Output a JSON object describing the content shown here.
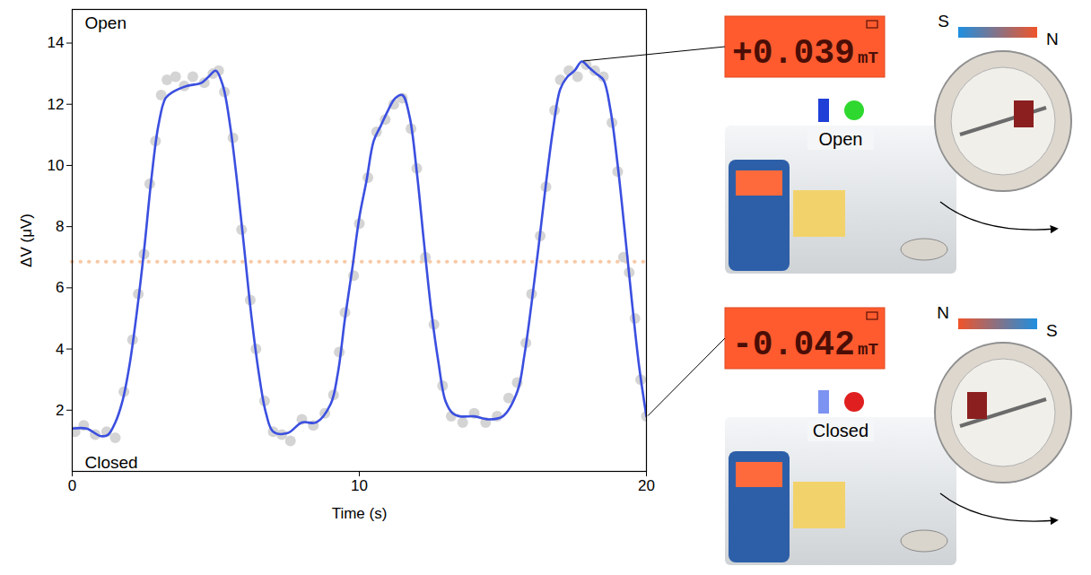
{
  "chart_data": {
    "type": "line",
    "xlabel": "Time (s)",
    "ylabel": "ΔV (μV)",
    "xlim": [
      0,
      20
    ],
    "xticks": [
      0,
      10,
      20
    ],
    "ylim": [
      0,
      15.1
    ],
    "yticks": [
      2,
      4,
      6,
      8,
      10,
      12,
      14
    ],
    "series": [
      {
        "type": "scatter",
        "marker": "circle",
        "color": "#d4d4d4",
        "x": [
          0.1,
          0.4,
          0.8,
          1.2,
          1.5,
          1.8,
          2.1,
          2.3,
          2.5,
          2.7,
          2.9,
          3.1,
          3.3,
          3.6,
          3.9,
          4.2,
          4.6,
          4.9,
          5.1,
          5.3,
          5.6,
          5.9,
          6.2,
          6.4,
          6.7,
          7.0,
          7.3,
          7.6,
          8.0,
          8.4,
          8.8,
          9.1,
          9.3,
          9.5,
          9.8,
          10.0,
          10.3,
          10.6,
          10.9,
          11.2,
          11.5,
          11.8,
          12.0,
          12.3,
          12.6,
          12.9,
          13.2,
          13.6,
          14.0,
          14.4,
          14.8,
          15.2,
          15.5,
          15.8,
          16.0,
          16.3,
          16.5,
          16.8,
          17.0,
          17.3,
          17.6,
          17.9,
          18.2,
          18.5,
          18.8,
          19.0,
          19.2,
          19.4,
          19.6,
          19.8,
          20.0
        ],
        "values": [
          1.3,
          1.5,
          1.2,
          1.3,
          1.1,
          2.6,
          4.3,
          5.8,
          7.1,
          9.4,
          10.8,
          12.3,
          12.8,
          12.9,
          12.6,
          12.9,
          12.7,
          13.0,
          13.1,
          12.4,
          10.9,
          7.9,
          5.6,
          4.0,
          2.3,
          1.3,
          1.2,
          1.0,
          1.7,
          1.5,
          1.9,
          2.5,
          3.9,
          5.2,
          6.4,
          8.1,
          9.6,
          11.1,
          11.5,
          12.0,
          12.2,
          11.2,
          9.9,
          7.0,
          4.8,
          2.8,
          1.8,
          1.6,
          1.9,
          1.6,
          1.8,
          2.4,
          2.9,
          4.2,
          5.8,
          7.7,
          9.3,
          11.8,
          12.8,
          13.1,
          12.9,
          13.3,
          13.1,
          12.9,
          11.4,
          9.8,
          7.0,
          6.5,
          5.0,
          3.0,
          1.8
        ]
      },
      {
        "type": "line",
        "line_style": "solid",
        "color": "#3b4fe0",
        "x": [
          0,
          0.5,
          1.0,
          1.25,
          1.5,
          1.75,
          2.0,
          2.25,
          2.5,
          2.75,
          3.0,
          3.25,
          3.5,
          4.0,
          4.5,
          4.75,
          5.0,
          5.25,
          5.5,
          5.75,
          6.0,
          6.25,
          6.5,
          6.75,
          7.0,
          7.5,
          8.0,
          8.5,
          9.0,
          9.25,
          9.5,
          9.75,
          10.0,
          10.25,
          10.5,
          10.75,
          11.0,
          11.25,
          11.5,
          11.75,
          12.0,
          12.25,
          12.5,
          12.75,
          13.0,
          13.25,
          13.5,
          14.0,
          14.5,
          15.0,
          15.5,
          15.75,
          16.0,
          16.25,
          16.5,
          16.75,
          17.0,
          17.25,
          17.5,
          17.75,
          18.0,
          18.25,
          18.5,
          18.75,
          19.0,
          19.25,
          19.5,
          19.75,
          20.0
        ],
        "values": [
          1.4,
          1.4,
          1.15,
          1.2,
          1.6,
          2.3,
          3.5,
          5.2,
          7.2,
          9.5,
          11.3,
          12.2,
          12.4,
          12.6,
          12.7,
          12.9,
          13.1,
          12.6,
          11.3,
          9.4,
          7.2,
          5.0,
          3.2,
          1.9,
          1.3,
          1.25,
          1.6,
          1.6,
          2.2,
          3.2,
          5.0,
          6.6,
          8.3,
          9.5,
          10.8,
          11.3,
          11.8,
          12.2,
          12.3,
          11.6,
          9.8,
          7.5,
          5.3,
          3.6,
          2.3,
          1.9,
          1.8,
          1.8,
          1.7,
          1.8,
          2.6,
          3.8,
          5.5,
          7.4,
          9.4,
          11.2,
          12.5,
          12.9,
          13.1,
          13.4,
          13.2,
          13.0,
          12.8,
          11.8,
          10.0,
          7.8,
          5.5,
          3.4,
          1.8
        ]
      }
    ],
    "reference_line": {
      "y": 6.85,
      "color": "#f8c9a6",
      "line_style": "dotted"
    },
    "annotations": [
      {
        "text": "Open",
        "position": "top-left"
      },
      {
        "text": "Closed",
        "position": "bottom-left"
      }
    ]
  },
  "insets": [
    {
      "reading": "+0.039",
      "unit": "mT",
      "state": "Open",
      "indicator_color": "#2fd82f",
      "magnet": [
        "S",
        "N"
      ]
    },
    {
      "reading": "-0.042",
      "unit": "mT",
      "state": "Closed",
      "indicator_color": "#e02020",
      "magnet": [
        "N",
        "S"
      ]
    }
  ]
}
